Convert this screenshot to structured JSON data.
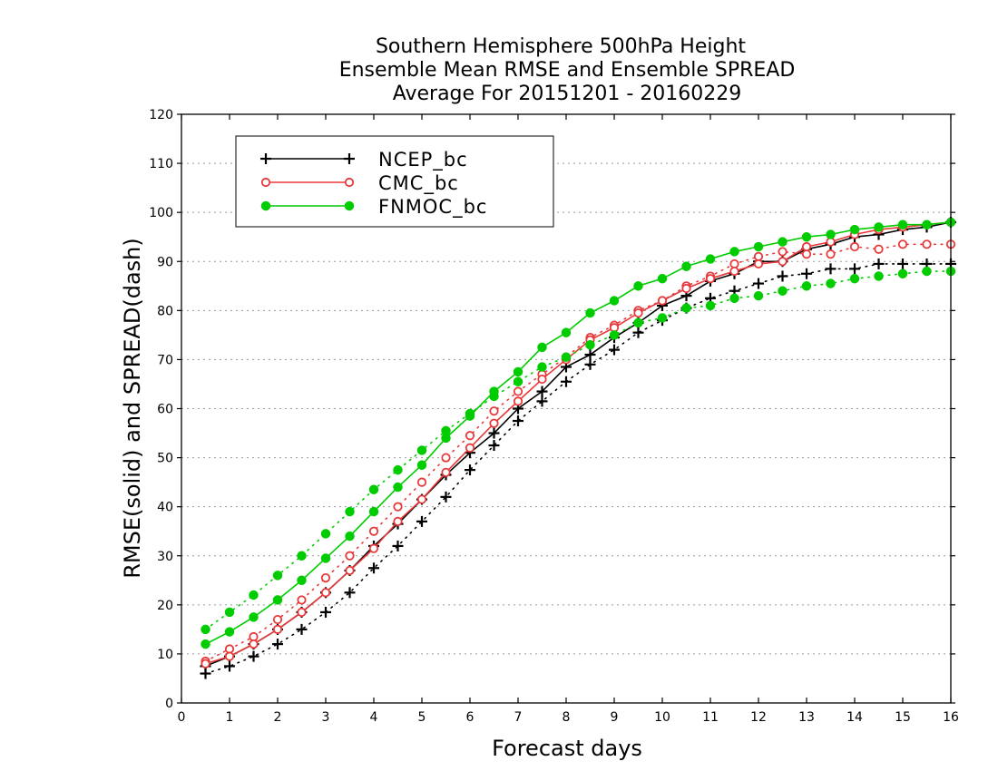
{
  "chart_data": {
    "type": "line",
    "title_lines": [
      "Southern Hemisphere 500hPa Height",
      "Ensemble Mean RMSE and Ensemble SPREAD",
      "Average For 20151201 - 20160229"
    ],
    "xlabel": "Forecast days",
    "ylabel": "RMSE(solid) and SPREAD(dash)",
    "xlim": [
      0,
      16
    ],
    "ylim": [
      0,
      120
    ],
    "xticks": [
      "0",
      "1",
      "2",
      "3",
      "4",
      "5",
      "6",
      "7",
      "8",
      "9",
      "10",
      "11",
      "12",
      "13",
      "14",
      "15",
      "16"
    ],
    "yticks": [
      "0",
      "10",
      "20",
      "30",
      "40",
      "50",
      "60",
      "70",
      "80",
      "90",
      "100",
      "110",
      "120"
    ],
    "grid": true,
    "legend_position": "top-left",
    "x": [
      0.5,
      1,
      1.5,
      2,
      2.5,
      3,
      3.5,
      4,
      4.5,
      5,
      5.5,
      6,
      6.5,
      7,
      7.5,
      8,
      8.5,
      9,
      9.5,
      10,
      10.5,
      11,
      11.5,
      12,
      12.5,
      13,
      13.5,
      14,
      14.5,
      15,
      15.5,
      16
    ],
    "series": [
      {
        "name": "NCEP_bc",
        "color": "#000000",
        "marker": "plus",
        "rmse": [
          7.5,
          9.5,
          12,
          15,
          18.5,
          22.5,
          27,
          32,
          36.5,
          41.5,
          46.5,
          51,
          55,
          60,
          63.5,
          68.5,
          71,
          74.5,
          77.5,
          81,
          83,
          86,
          87.5,
          90,
          90,
          92.5,
          93.5,
          95,
          95.5,
          96.5,
          97,
          98
        ],
        "spread": [
          6,
          7.5,
          9.5,
          12,
          15,
          18.5,
          22.5,
          27.5,
          32,
          37,
          42,
          47.5,
          52.5,
          57.5,
          61.5,
          65.5,
          69,
          72,
          75.5,
          78,
          80.5,
          82.5,
          84,
          85.5,
          87,
          87.5,
          88.5,
          88.5,
          89.5,
          89.5,
          89.5,
          89.5
        ]
      },
      {
        "name": "CMC_bc",
        "color": "#e8393a",
        "marker": "circle",
        "rmse": [
          8,
          9.5,
          12,
          15,
          18.5,
          22.5,
          27,
          31.5,
          37,
          41.5,
          47,
          52,
          57,
          61.5,
          66,
          70,
          74,
          76.5,
          79.5,
          82,
          84.5,
          86.5,
          88,
          89.5,
          90,
          93,
          94,
          95.5,
          96.5,
          97,
          97.5,
          98
        ],
        "spread": [
          8.5,
          11,
          13.5,
          17,
          21,
          25.5,
          30,
          35,
          40,
          45,
          50,
          54.5,
          59.5,
          63.5,
          67,
          70.5,
          74.5,
          77,
          80,
          82,
          85,
          87,
          89.5,
          91,
          92,
          91.5,
          91.5,
          93,
          92.5,
          93.5,
          93.5,
          93.5
        ]
      },
      {
        "name": "FNMOC_bc",
        "color": "#00cc00",
        "marker": "dot",
        "rmse": [
          12,
          14.5,
          17.5,
          21,
          25,
          29.5,
          34,
          39,
          44,
          48.5,
          54,
          58.5,
          63.5,
          67.5,
          72.5,
          75.5,
          79.5,
          82,
          85,
          86.5,
          89,
          90.5,
          92,
          93,
          94,
          95,
          95.5,
          96.5,
          97,
          97.5,
          97.5,
          98
        ],
        "spread": [
          15,
          18.5,
          22,
          26,
          30,
          34.5,
          39,
          43.5,
          47.5,
          51.5,
          55.5,
          59,
          62.5,
          65.5,
          68.5,
          70.5,
          73,
          75,
          77.5,
          78.5,
          80.5,
          81,
          82.5,
          83,
          84,
          85,
          85.5,
          86.5,
          87,
          87.5,
          88,
          88
        ]
      }
    ]
  }
}
